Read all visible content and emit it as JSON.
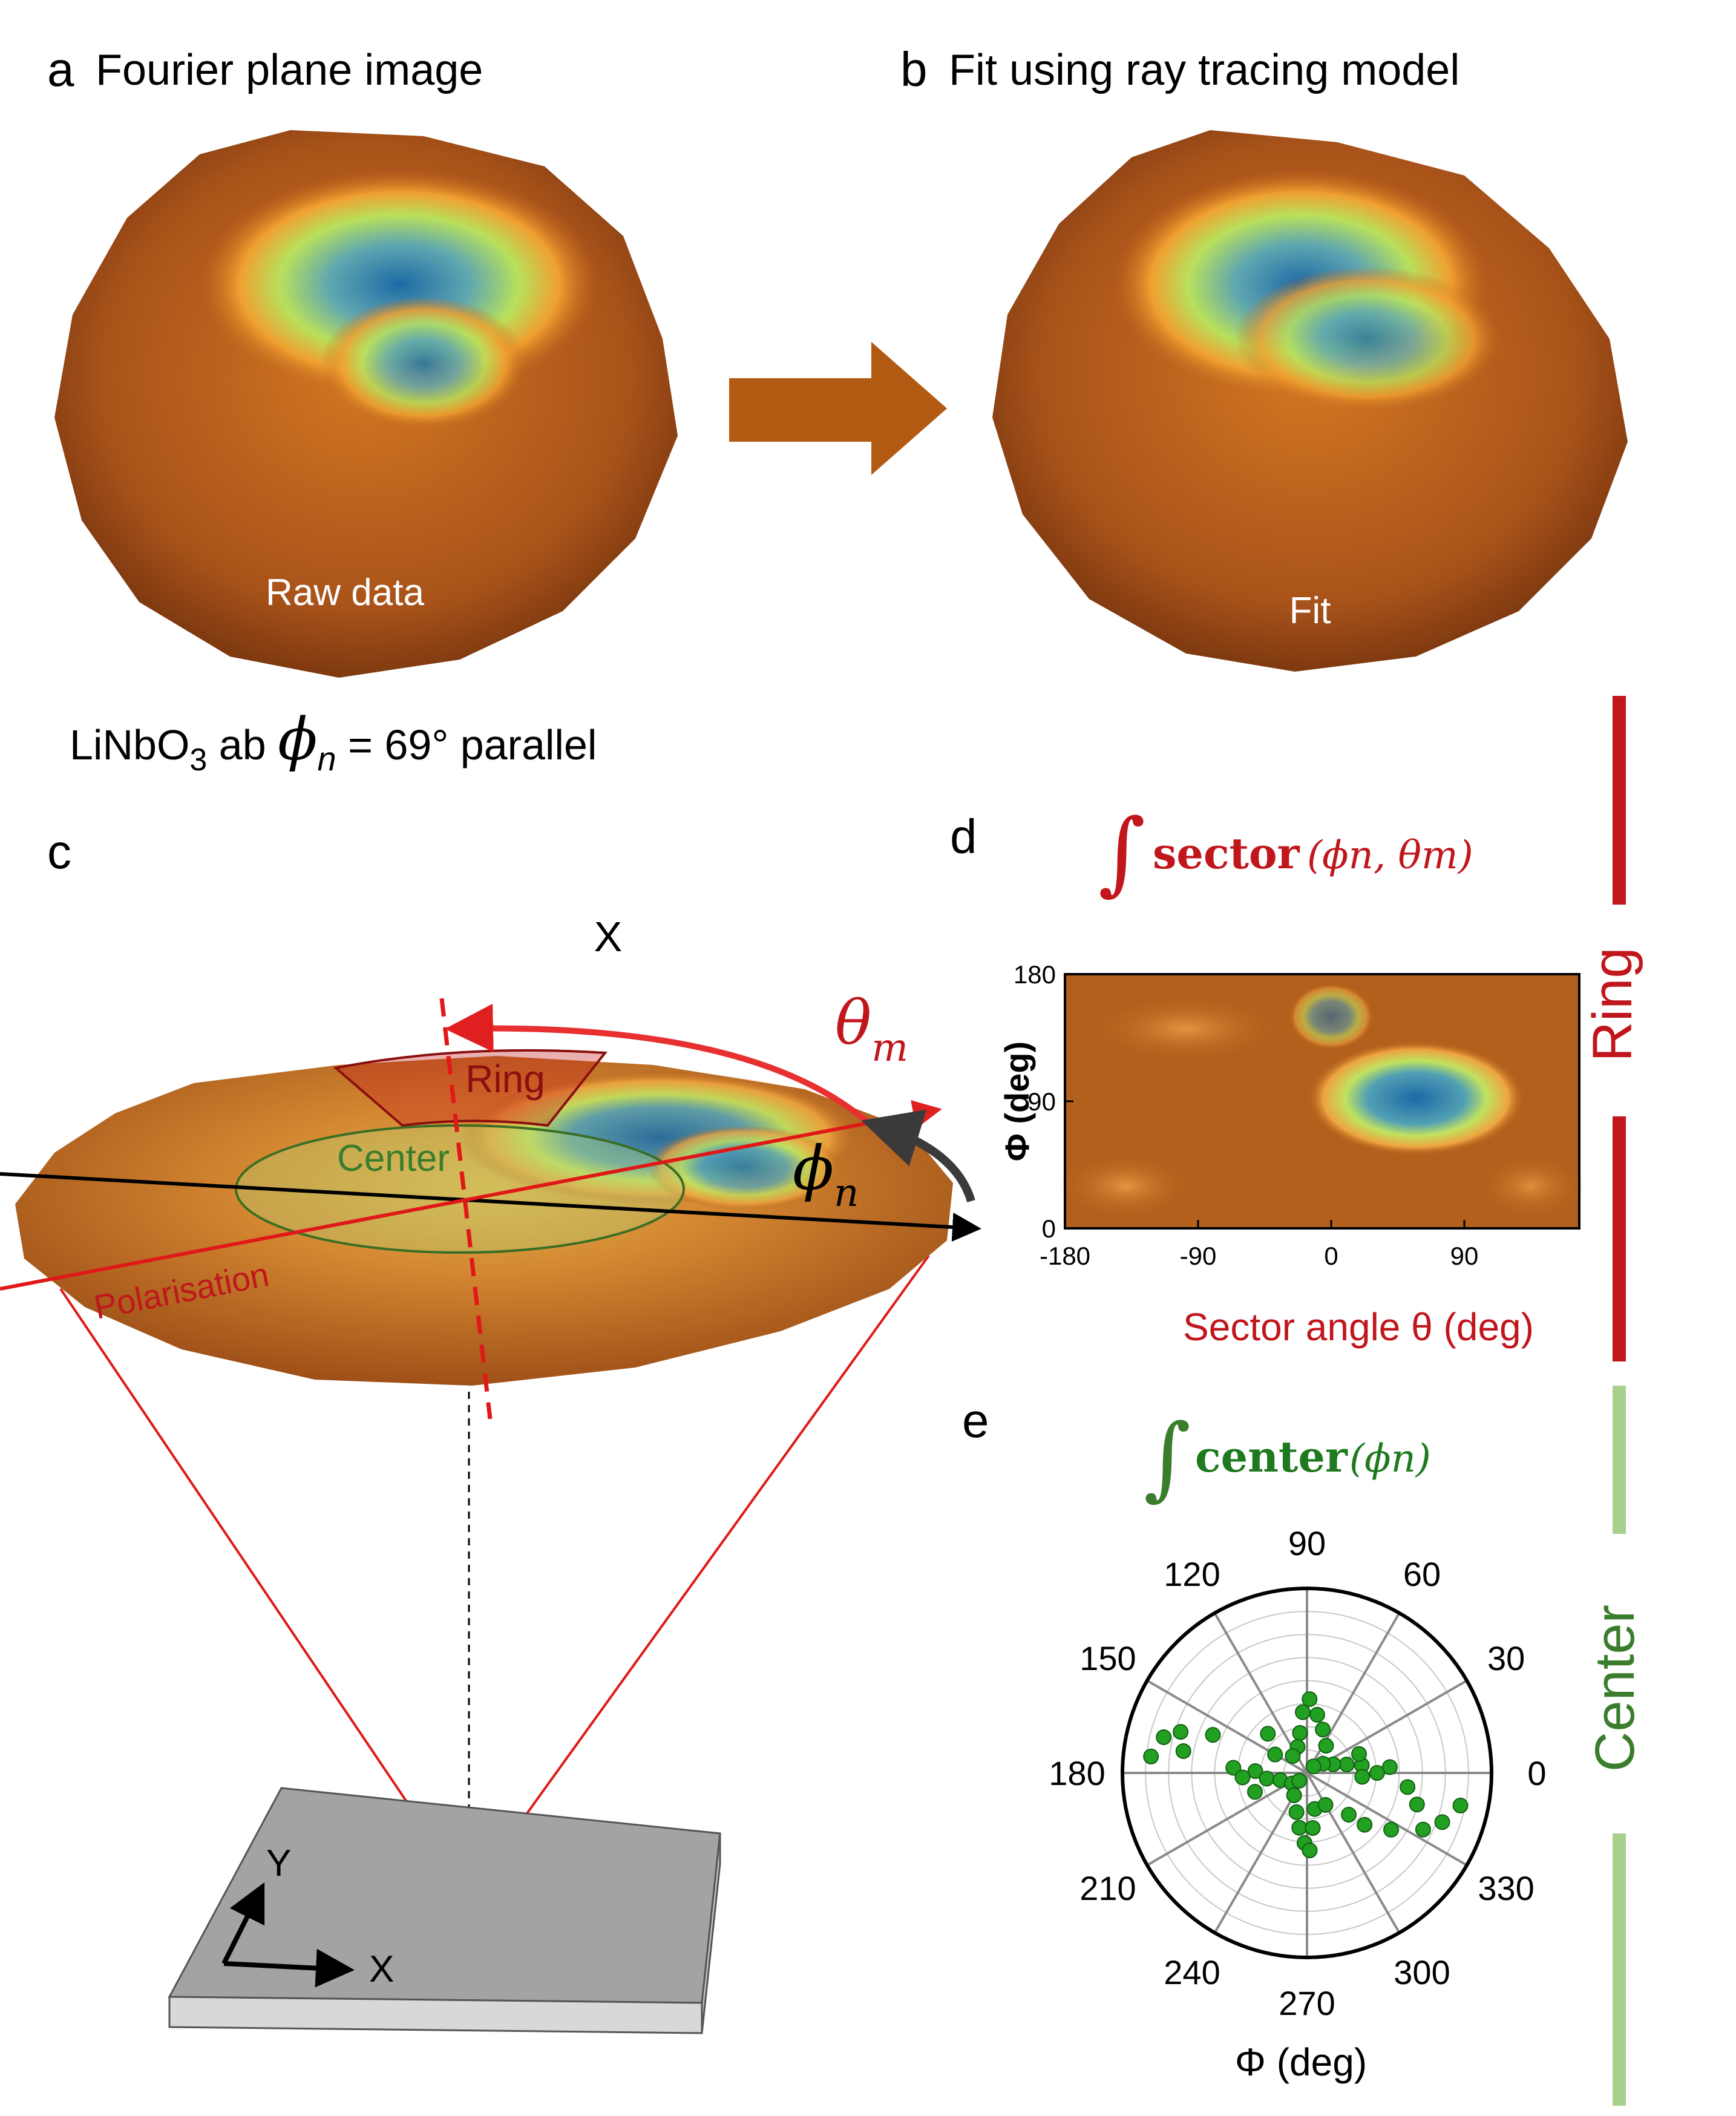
{
  "panels": {
    "a": {
      "letter": "a",
      "title": "Fourier plane image",
      "inner_label": "Raw data"
    },
    "b": {
      "letter": "b",
      "title": "Fit using ray tracing model",
      "inner_label": "Fit"
    },
    "c": {
      "letter": "c"
    },
    "d": {
      "letter": "d"
    },
    "e": {
      "letter": "e"
    }
  },
  "sample_caption": {
    "prefix": "LiNbO",
    "subscript": "3",
    "mid": " ab ",
    "phi_symbol": "ϕ",
    "phi_sub": "n",
    "suffix": " = 69° parallel"
  },
  "panel_c": {
    "x_top_label": "X",
    "theta_symbol": "θ",
    "theta_sub": "m",
    "phi_symbol": "ϕ",
    "phi_sub": "n",
    "ring_label": "Ring",
    "center_label": "Center",
    "polarisation_label": "Polarisation",
    "axis_y": "Y",
    "axis_x": "X"
  },
  "panel_d": {
    "formula_keyword": "sector",
    "formula_args": "(ϕn, θm)",
    "y_label": "Φ (deg)",
    "x_label": "Sector angle θ (deg)",
    "x_ticks": [
      "-180",
      "-90",
      "0",
      "90"
    ],
    "y_ticks": [
      "180",
      "90",
      "0"
    ]
  },
  "panel_e": {
    "formula_keyword": "center",
    "formula_args": "(ϕn)",
    "angle_labels": [
      "0",
      "30",
      "60",
      "90",
      "120",
      "150",
      "180",
      "210",
      "240",
      "270",
      "300",
      "330"
    ],
    "axis_label": "Φ (deg)"
  },
  "side_labels": {
    "ring": "Ring",
    "center": "Center"
  },
  "colors": {
    "ring_red": "#c0161c",
    "center_green": "#3a7d2c",
    "side_green": "#a6d08c",
    "arrow_brown": "#b35a12",
    "orange_base": "#b8601a",
    "hot_blue": "#1a6aa8",
    "hot_green": "#cde840"
  },
  "chart_data": {
    "type": "scatter",
    "title": "",
    "coordinate_system": "polar",
    "angle_unit": "deg",
    "points": [
      {
        "phi": 0,
        "r": 0.38
      },
      {
        "phi": 4,
        "r": 0.45
      },
      {
        "phi": 8,
        "r": 0.3
      },
      {
        "phi": 12,
        "r": 0.22
      },
      {
        "phi": 18,
        "r": 0.15
      },
      {
        "phi": 30,
        "r": 0.1
      },
      {
        "phi": 55,
        "r": 0.18
      },
      {
        "phi": 70,
        "r": 0.25
      },
      {
        "phi": 80,
        "r": 0.32
      },
      {
        "phi": 88,
        "r": 0.4
      },
      {
        "phi": 94,
        "r": 0.33
      },
      {
        "phi": 100,
        "r": 0.22
      },
      {
        "phi": 110,
        "r": 0.15
      },
      {
        "phi": 130,
        "r": 0.12
      },
      {
        "phi": 150,
        "r": 0.2
      },
      {
        "phi": 158,
        "r": 0.55
      },
      {
        "phi": 162,
        "r": 0.72
      },
      {
        "phi": 166,
        "r": 0.8
      },
      {
        "phi": 170,
        "r": 0.68
      },
      {
        "phi": 174,
        "r": 0.85
      },
      {
        "phi": 176,
        "r": 0.4
      },
      {
        "phi": 178,
        "r": 0.28
      },
      {
        "phi": 184,
        "r": 0.35
      },
      {
        "phi": 188,
        "r": 0.22
      },
      {
        "phi": 195,
        "r": 0.15
      },
      {
        "phi": 215,
        "r": 0.1
      },
      {
        "phi": 240,
        "r": 0.14
      },
      {
        "phi": 255,
        "r": 0.22
      },
      {
        "phi": 262,
        "r": 0.3
      },
      {
        "phi": 268,
        "r": 0.38
      },
      {
        "phi": 272,
        "r": 0.42
      },
      {
        "phi": 276,
        "r": 0.3
      },
      {
        "phi": 282,
        "r": 0.2
      },
      {
        "phi": 300,
        "r": 0.2
      },
      {
        "phi": 318,
        "r": 0.42
      },
      {
        "phi": 326,
        "r": 0.55
      },
      {
        "phi": 334,
        "r": 0.7
      },
      {
        "phi": 340,
        "r": 0.78
      },
      {
        "phi": 344,
        "r": 0.62
      },
      {
        "phi": 348,
        "r": 0.85
      },
      {
        "phi": 352,
        "r": 0.55
      },
      {
        "phi": 356,
        "r": 0.3
      },
      {
        "phi": 45,
        "r": 0.05
      },
      {
        "phi": 225,
        "r": 0.06
      },
      {
        "phi": 135,
        "r": 0.3
      },
      {
        "phi": 315,
        "r": 0.32
      },
      {
        "phi": 200,
        "r": 0.3
      },
      {
        "phi": 20,
        "r": 0.3
      }
    ]
  }
}
